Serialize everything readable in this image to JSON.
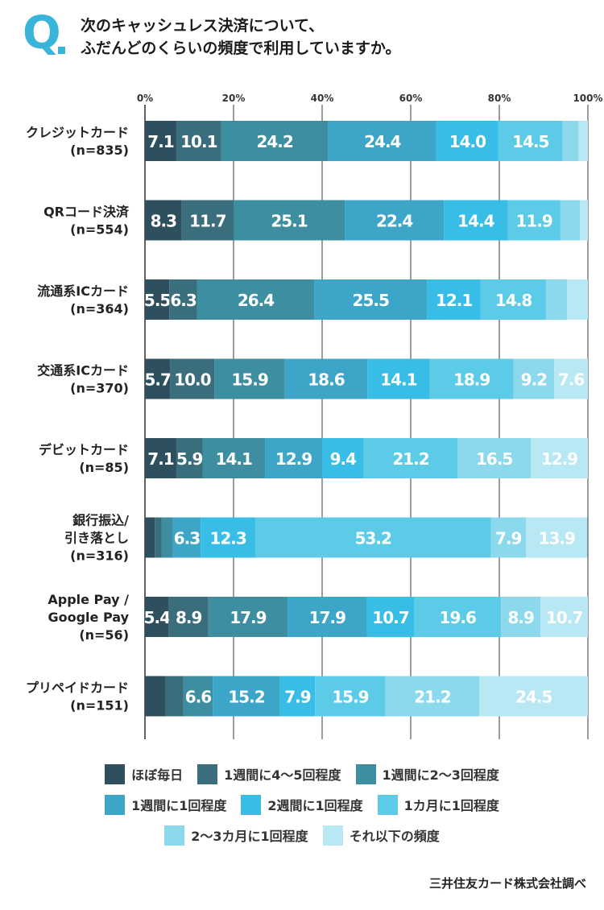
{
  "header": {
    "q_mark": "Q",
    "title_line1": "次のキャッシュレス決済について、",
    "title_line2": "ふだんどのくらいの頻度で利用していますか。"
  },
  "source": "三井住友カード株式会社調べ",
  "colors": [
    "#2e4f5d",
    "#3b6e7d",
    "#3e8ea2",
    "#3da6c8",
    "#37bde6",
    "#5ccbe8",
    "#8cd9ee",
    "#b9e8f5"
  ],
  "chart_data": {
    "type": "stacked-bar-horizontal",
    "x_ticks": [
      "0%",
      "20%",
      "40%",
      "60%",
      "80%",
      "100%"
    ],
    "xlim": [
      0,
      100
    ],
    "series": [
      {
        "name": "ほぼ毎日"
      },
      {
        "name": "1週間に4～5回程度"
      },
      {
        "name": "1週間に2～3回程度"
      },
      {
        "name": "1週間に1回程度"
      },
      {
        "name": "2週間に1回程度"
      },
      {
        "name": "1カ月に1回程度"
      },
      {
        "name": "2～3カ月に1回程度"
      },
      {
        "name": "それ以下の頻度"
      }
    ],
    "categories": [
      {
        "label": [
          "クレジットカード",
          "(n=835)"
        ],
        "values": [
          7.1,
          10.1,
          24.2,
          24.4,
          14.0,
          14.5,
          3.6,
          2.1
        ],
        "labels": [
          "7.1",
          "10.1",
          "24.2",
          "24.4",
          "14.0",
          "14.5",
          "",
          ""
        ]
      },
      {
        "label": [
          "QRコード決済",
          "(n=554)"
        ],
        "values": [
          8.3,
          11.7,
          25.1,
          22.4,
          14.4,
          11.9,
          4.4,
          1.8
        ],
        "labels": [
          "8.3",
          "11.7",
          "25.1",
          "22.4",
          "14.4",
          "11.9",
          "",
          ""
        ]
      },
      {
        "label": [
          "流通系ICカード",
          "(n=364)"
        ],
        "values": [
          5.5,
          6.3,
          26.4,
          25.5,
          12.1,
          14.8,
          4.7,
          4.7
        ],
        "labels": [
          "5.5",
          "6.3",
          "26.4",
          "25.5",
          "12.1",
          "14.8",
          "",
          ""
        ]
      },
      {
        "label": [
          "交通系ICカード",
          "(n=370)"
        ],
        "values": [
          5.7,
          10.0,
          15.9,
          18.6,
          14.1,
          18.9,
          9.2,
          7.6
        ],
        "labels": [
          "5.7",
          "10.0",
          "15.9",
          "18.6",
          "14.1",
          "18.9",
          "9.2",
          "7.6"
        ]
      },
      {
        "label": [
          "デビットカード",
          "(n=85)"
        ],
        "values": [
          7.1,
          5.9,
          14.1,
          12.9,
          9.4,
          21.2,
          16.5,
          12.9
        ],
        "labels": [
          "7.1",
          "5.9",
          "14.1",
          "12.9",
          "9.4",
          "21.2",
          "16.5",
          "12.9"
        ]
      },
      {
        "label": [
          "銀行振込/",
          "引き落とし",
          "(n=316)"
        ],
        "values": [
          2.2,
          1.6,
          2.5,
          6.3,
          12.3,
          53.2,
          7.9,
          13.9
        ],
        "labels": [
          "",
          "",
          "",
          "6.3",
          "12.3",
          "53.2",
          "7.9",
          "13.9"
        ]
      },
      {
        "label": [
          "Apple Pay /",
          "Google Pay",
          "(n=56)"
        ],
        "values": [
          5.4,
          8.9,
          17.9,
          17.9,
          10.7,
          19.6,
          8.9,
          10.7
        ],
        "labels": [
          "5.4",
          "8.9",
          "17.9",
          "17.9",
          "10.7",
          "19.6",
          "8.9",
          "10.7"
        ]
      },
      {
        "label": [
          "プリペイドカード",
          "(n=151)"
        ],
        "values": [
          4.7,
          4.0,
          6.6,
          15.2,
          7.9,
          15.9,
          21.2,
          24.5
        ],
        "labels": [
          "",
          "",
          "6.6",
          "15.2",
          "7.9",
          "15.9",
          "21.2",
          "24.5"
        ]
      }
    ],
    "legend_placement": "bottom",
    "grid": true
  }
}
